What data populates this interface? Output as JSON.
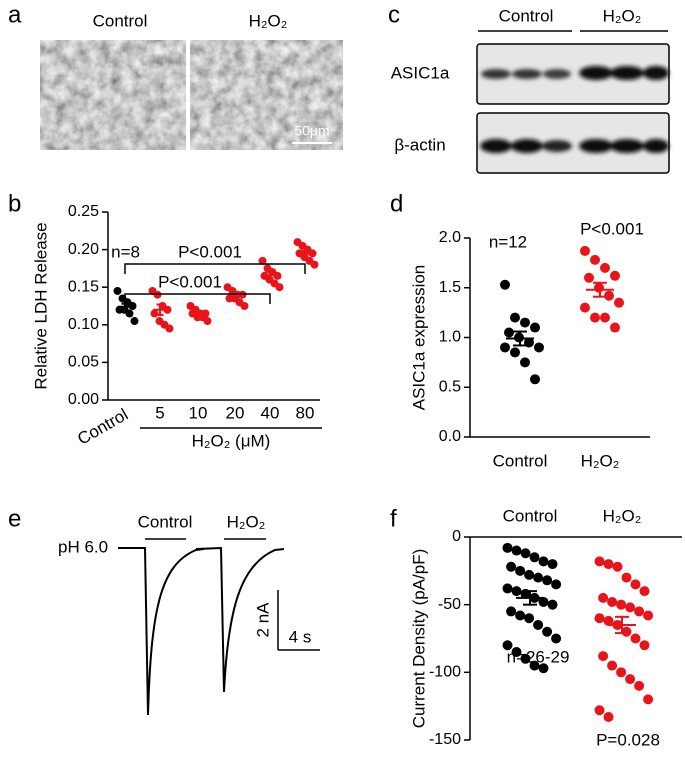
{
  "panel_labels": [
    "a",
    "b",
    "c",
    "d",
    "e",
    "f"
  ],
  "images": {
    "labels": [
      "Control",
      "H₂O₂"
    ],
    "scale_bar": "50μm"
  },
  "blot": {
    "groups": [
      "Control",
      "H₂O₂"
    ],
    "rows": [
      "ASIC1a",
      "β-actin"
    ]
  },
  "traces": {
    "stimulus": "pH 6.0",
    "labels": [
      "Control",
      "H₂O₂"
    ],
    "scale_current": "2 nA",
    "scale_time": "4 s"
  },
  "chart_data": [
    {
      "type": "strip",
      "ylabel": "Relative LDH Release",
      "categories": [
        "Control",
        "5",
        "10",
        "20",
        "40",
        "80"
      ],
      "group_label": "H₂O₂ (μM)",
      "colors": [
        "#000000",
        "#e8141a",
        "#e8141a",
        "#e8141a",
        "#e8141a",
        "#e8141a"
      ],
      "points": [
        [
          0.145,
          0.135,
          0.13,
          0.125,
          0.12,
          0.12,
          0.115,
          0.105
        ],
        [
          0.145,
          0.14,
          0.125,
          0.12,
          0.115,
          0.105,
          0.1,
          0.095
        ],
        [
          0.125,
          0.12,
          0.115,
          0.115,
          0.115,
          0.11,
          0.11,
          0.105
        ],
        [
          0.15,
          0.145,
          0.14,
          0.14,
          0.135,
          0.135,
          0.13,
          0.125
        ],
        [
          0.185,
          0.175,
          0.17,
          0.165,
          0.165,
          0.16,
          0.155,
          0.15
        ],
        [
          0.21,
          0.205,
          0.2,
          0.195,
          0.195,
          0.19,
          0.185,
          0.18
        ]
      ],
      "means": [
        0.124,
        0.12,
        0.115,
        0.138,
        0.166,
        0.195
      ],
      "sems": [
        0.004,
        0.007,
        0.002,
        0.003,
        0.004,
        0.003
      ],
      "annotations": [
        "n=8",
        "P<0.001",
        "P<0.001"
      ],
      "ylim": [
        0,
        0.25
      ],
      "yticks": [
        {
          "value": 0,
          "label": "0.00"
        },
        0.05,
        {
          "value": 0.1,
          "label": "0.10"
        },
        0.15,
        {
          "value": 0.2,
          "label": "0.20"
        },
        0.25
      ]
    },
    {
      "type": "strip",
      "ylabel": "ASIC1a expression",
      "categories": [
        "Control",
        "H₂O₂"
      ],
      "colors": [
        "#000000",
        "#e8141a"
      ],
      "points": [
        [
          1.53,
          1.2,
          1.15,
          1.1,
          1.05,
          1.0,
          0.95,
          0.9,
          0.9,
          0.85,
          0.75,
          0.58
        ],
        [
          1.87,
          1.78,
          1.7,
          1.62,
          1.6,
          1.5,
          1.42,
          1.35,
          1.3,
          1.2,
          1.2,
          1.1
        ]
      ],
      "means": [
        0.99,
        1.48
      ],
      "sems": [
        0.07,
        0.07
      ],
      "annotations": [
        "n=12",
        "P<0.001"
      ],
      "ylim": [
        0,
        2
      ],
      "yticks": [
        {
          "value": 0,
          "label": "0.0"
        },
        0.5,
        {
          "value": 1,
          "label": "1.0"
        },
        1.5,
        {
          "value": 2,
          "label": "2.0"
        }
      ]
    },
    {
      "type": "strip",
      "ylabel": "Current Density (pA/pF)",
      "categories": [
        "Control",
        "H₂O₂"
      ],
      "colors": [
        "#000000",
        "#e8141a"
      ],
      "points": [
        [
          -8,
          -10,
          -12,
          -15,
          -18,
          -20,
          -22,
          -25,
          -28,
          -30,
          -32,
          -35,
          -38,
          -40,
          -42,
          -45,
          -48,
          -50,
          -55,
          -58,
          -60,
          -65,
          -70,
          -75,
          -80,
          -85,
          -90,
          -95,
          -97
        ],
        [
          -18,
          -20,
          -22,
          -30,
          -35,
          -40,
          -45,
          -48,
          -50,
          -52,
          -55,
          -58,
          -60,
          -62,
          -65,
          -70,
          -75,
          -80,
          -88,
          -95,
          -100,
          -105,
          -110,
          -120,
          -128,
          -133
        ]
      ],
      "means": [
        -45,
        -65
      ],
      "sems": [
        5,
        6
      ],
      "annotations": [
        "n=26-29",
        "P=0.028"
      ],
      "ylim": [
        -150,
        0
      ],
      "yticks": [
        0,
        -50,
        -100,
        -150
      ]
    }
  ]
}
